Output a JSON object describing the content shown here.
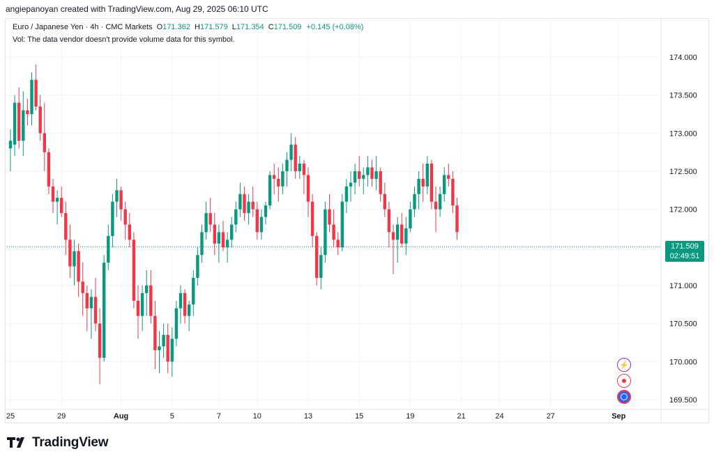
{
  "header": {
    "text": "angiepanoyan created with TradingView.com, Aug 29, 2025 06:10 UTC"
  },
  "legend": {
    "symbol": "Euro / Japanese Yen · 4h · CMC Markets",
    "open_label": "O",
    "open": "171.362",
    "high_label": "H",
    "high": "171.579",
    "low_label": "L",
    "low": "171.354",
    "close_label": "C",
    "close": "171.509",
    "change": "+0.145 (+0.08%)",
    "volume_note": "Vol: The data vendor doesn't provide volume data for this symbol."
  },
  "price_tag": {
    "price": "171.509",
    "countdown": "02:49:51"
  },
  "footer": {
    "logo_text": "TradingView"
  },
  "colors": {
    "up": "#089981",
    "down": "#f23645",
    "grid": "#f0f3fa",
    "axis_text": "#131722"
  },
  "icons": [
    "lightning-icon",
    "record-icon",
    "globe-icon"
  ],
  "chart_data": {
    "type": "candlestick",
    "symbol": "EURJPY",
    "timeframe": "4h",
    "y_ticks": [
      "174.000",
      "173.500",
      "173.000",
      "172.500",
      "172.000",
      "171.500",
      "171.000",
      "170.500",
      "170.000",
      "169.500"
    ],
    "ylim": [
      169.4,
      174.2
    ],
    "x_ticks": [
      {
        "label": "25",
        "index": 0
      },
      {
        "label": "29",
        "index": 12
      },
      {
        "label": "Aug",
        "index": 26
      },
      {
        "label": "5",
        "index": 38
      },
      {
        "label": "7",
        "index": 49
      },
      {
        "label": "10",
        "index": 58
      },
      {
        "label": "13",
        "index": 70
      },
      {
        "label": "15",
        "index": 82
      },
      {
        "label": "19",
        "index": 94
      },
      {
        "label": "21",
        "index": 106
      },
      {
        "label": "24",
        "index": 115
      },
      {
        "label": "27",
        "index": 127
      },
      {
        "label": "Sep",
        "index": 143
      }
    ],
    "last_price": 171.509,
    "candles": [
      [
        172.8,
        173.05,
        172.5,
        172.9
      ],
      [
        172.85,
        173.5,
        172.7,
        173.4
      ],
      [
        173.4,
        173.6,
        172.8,
        172.9
      ],
      [
        172.9,
        173.55,
        172.7,
        173.3
      ],
      [
        173.3,
        173.45,
        173.1,
        173.25
      ],
      [
        173.25,
        173.8,
        173.1,
        173.7
      ],
      [
        173.7,
        173.9,
        173.3,
        173.35
      ],
      [
        173.35,
        173.5,
        172.9,
        173.0
      ],
      [
        173.0,
        173.4,
        172.5,
        172.75
      ],
      [
        172.75,
        172.8,
        172.2,
        172.3
      ],
      [
        172.3,
        172.4,
        171.95,
        172.1
      ],
      [
        172.1,
        172.25,
        171.8,
        172.15
      ],
      [
        172.15,
        172.3,
        171.9,
        171.95
      ],
      [
        171.95,
        172.1,
        171.4,
        171.6
      ],
      [
        171.6,
        171.8,
        171.1,
        171.25
      ],
      [
        171.25,
        171.6,
        171.0,
        171.45
      ],
      [
        171.45,
        171.55,
        170.85,
        171.05
      ],
      [
        171.05,
        171.3,
        170.6,
        170.9
      ],
      [
        170.9,
        171.0,
        170.4,
        170.7
      ],
      [
        170.7,
        170.95,
        170.3,
        170.85
      ],
      [
        170.85,
        171.1,
        170.4,
        170.5
      ],
      [
        170.5,
        170.7,
        169.7,
        170.05
      ],
      [
        170.05,
        171.4,
        170.0,
        171.3
      ],
      [
        171.3,
        171.8,
        171.2,
        171.65
      ],
      [
        171.65,
        172.2,
        171.5,
        172.1
      ],
      [
        172.1,
        172.4,
        171.9,
        172.25
      ],
      [
        172.25,
        172.3,
        171.85,
        172.0
      ],
      [
        172.0,
        172.1,
        171.6,
        171.8
      ],
      [
        171.8,
        171.95,
        171.5,
        171.6
      ],
      [
        171.6,
        171.7,
        170.7,
        170.8
      ],
      [
        170.8,
        171.0,
        170.3,
        170.6
      ],
      [
        170.6,
        171.0,
        170.4,
        170.9
      ],
      [
        170.9,
        171.2,
        170.6,
        171.0
      ],
      [
        171.0,
        171.2,
        170.5,
        170.6
      ],
      [
        170.6,
        170.8,
        169.9,
        170.15
      ],
      [
        170.15,
        170.4,
        169.85,
        170.2
      ],
      [
        170.2,
        170.5,
        170.05,
        170.35
      ],
      [
        170.35,
        170.5,
        169.85,
        170.0
      ],
      [
        170.0,
        170.45,
        169.8,
        170.3
      ],
      [
        170.3,
        170.8,
        170.2,
        170.7
      ],
      [
        170.7,
        171.0,
        170.5,
        170.9
      ],
      [
        170.9,
        170.95,
        170.5,
        170.6
      ],
      [
        170.6,
        170.8,
        170.4,
        170.75
      ],
      [
        170.75,
        171.2,
        170.6,
        171.1
      ],
      [
        171.1,
        171.5,
        171.0,
        171.4
      ],
      [
        171.4,
        171.8,
        171.3,
        171.7
      ],
      [
        171.7,
        172.1,
        171.6,
        171.95
      ],
      [
        171.95,
        172.15,
        171.7,
        171.8
      ],
      [
        171.8,
        171.95,
        171.4,
        171.55
      ],
      [
        171.55,
        171.8,
        171.3,
        171.7
      ],
      [
        171.7,
        171.85,
        171.45,
        171.5
      ],
      [
        171.5,
        171.7,
        171.3,
        171.6
      ],
      [
        171.6,
        171.9,
        171.5,
        171.8
      ],
      [
        171.8,
        172.1,
        171.7,
        172.0
      ],
      [
        172.0,
        172.35,
        171.9,
        172.2
      ],
      [
        172.2,
        172.3,
        171.85,
        171.95
      ],
      [
        171.95,
        172.2,
        171.8,
        172.1
      ],
      [
        172.1,
        172.3,
        171.9,
        172.0
      ],
      [
        172.0,
        172.1,
        171.6,
        171.7
      ],
      [
        171.7,
        172.0,
        171.6,
        171.9
      ],
      [
        171.9,
        172.1,
        171.8,
        172.05
      ],
      [
        172.05,
        172.5,
        172.0,
        172.45
      ],
      [
        172.45,
        172.6,
        172.2,
        172.4
      ],
      [
        172.4,
        172.55,
        172.1,
        172.3
      ],
      [
        172.3,
        172.6,
        172.2,
        172.5
      ],
      [
        172.5,
        172.75,
        172.3,
        172.65
      ],
      [
        172.65,
        173.0,
        172.5,
        172.85
      ],
      [
        172.85,
        172.95,
        172.4,
        172.5
      ],
      [
        172.5,
        172.7,
        172.4,
        172.6
      ],
      [
        172.6,
        172.65,
        172.2,
        172.45
      ],
      [
        172.45,
        172.55,
        171.9,
        172.1
      ],
      [
        172.1,
        172.2,
        171.5,
        171.65
      ],
      [
        171.65,
        171.7,
        171.0,
        171.1
      ],
      [
        171.1,
        171.5,
        170.95,
        171.4
      ],
      [
        171.4,
        172.1,
        171.3,
        172.0
      ],
      [
        172.0,
        172.2,
        171.7,
        171.8
      ],
      [
        171.8,
        172.0,
        171.5,
        171.6
      ],
      [
        171.6,
        171.7,
        171.4,
        171.5
      ],
      [
        171.5,
        172.2,
        171.45,
        172.1
      ],
      [
        172.1,
        172.4,
        171.95,
        172.3
      ],
      [
        172.3,
        172.5,
        172.1,
        172.35
      ],
      [
        172.35,
        172.6,
        172.2,
        172.5
      ],
      [
        172.5,
        172.7,
        172.3,
        172.4
      ],
      [
        172.4,
        172.55,
        172.2,
        172.45
      ],
      [
        172.45,
        172.7,
        172.3,
        172.55
      ],
      [
        172.55,
        172.65,
        172.3,
        172.4
      ],
      [
        172.4,
        172.7,
        172.25,
        172.5
      ],
      [
        172.5,
        172.55,
        172.1,
        172.2
      ],
      [
        172.2,
        172.35,
        171.9,
        172.0
      ],
      [
        172.0,
        172.1,
        171.5,
        171.7
      ],
      [
        171.7,
        171.8,
        171.15,
        171.6
      ],
      [
        171.6,
        171.9,
        171.3,
        171.8
      ],
      [
        171.8,
        171.95,
        171.5,
        171.55
      ],
      [
        171.55,
        171.9,
        171.4,
        171.75
      ],
      [
        171.75,
        172.1,
        171.7,
        172.0
      ],
      [
        172.0,
        172.3,
        171.9,
        172.2
      ],
      [
        172.2,
        172.5,
        172.0,
        172.4
      ],
      [
        172.4,
        172.6,
        172.1,
        172.3
      ],
      [
        172.3,
        172.7,
        172.2,
        172.6
      ],
      [
        172.6,
        172.65,
        172.0,
        172.1
      ],
      [
        172.1,
        172.3,
        171.7,
        172.0
      ],
      [
        172.0,
        172.3,
        171.9,
        172.2
      ],
      [
        172.2,
        172.55,
        172.1,
        172.45
      ],
      [
        172.45,
        172.6,
        172.3,
        172.4
      ],
      [
        172.4,
        172.5,
        171.95,
        172.05
      ],
      [
        172.05,
        172.15,
        171.6,
        171.7
      ]
    ]
  }
}
